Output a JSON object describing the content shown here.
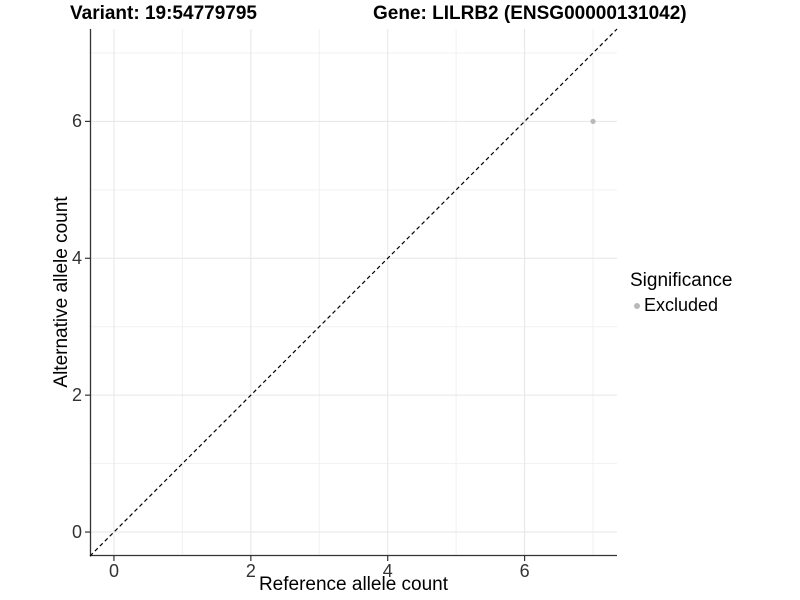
{
  "chart_data": {
    "type": "scatter",
    "titles": {
      "left": "Variant: 19:54779795",
      "right": "Gene: LILRB2 (ENSG00000131042)"
    },
    "xlabel": "Reference allele count",
    "ylabel": "Alternative allele count",
    "x_ticks": [
      0,
      2,
      4,
      6
    ],
    "y_ticks": [
      0,
      2,
      4,
      6
    ],
    "x_minor_gridlines": [
      1,
      3,
      5,
      7
    ],
    "y_minor_gridlines": [
      1,
      3,
      5,
      7
    ],
    "xlim": [
      -0.35,
      7.35
    ],
    "ylim": [
      -0.35,
      7.35
    ],
    "grid": true,
    "reference_line": {
      "slope": 1,
      "intercept": 0,
      "linetype": "dashed",
      "color": "#000000"
    },
    "series": [
      {
        "name": "Excluded",
        "color": "#b9b9b9",
        "points": [
          {
            "x": 7,
            "y": 6
          }
        ]
      }
    ],
    "legend": {
      "title": "Significance",
      "position": "right",
      "items": [
        {
          "label": "Excluded",
          "color": "#b9b9b9"
        }
      ]
    },
    "style_colors": {
      "grid_major": "#e6e6e6",
      "grid_minor": "#f1f1f1",
      "axis_line": "#333333",
      "tick_label": "#333333"
    }
  }
}
